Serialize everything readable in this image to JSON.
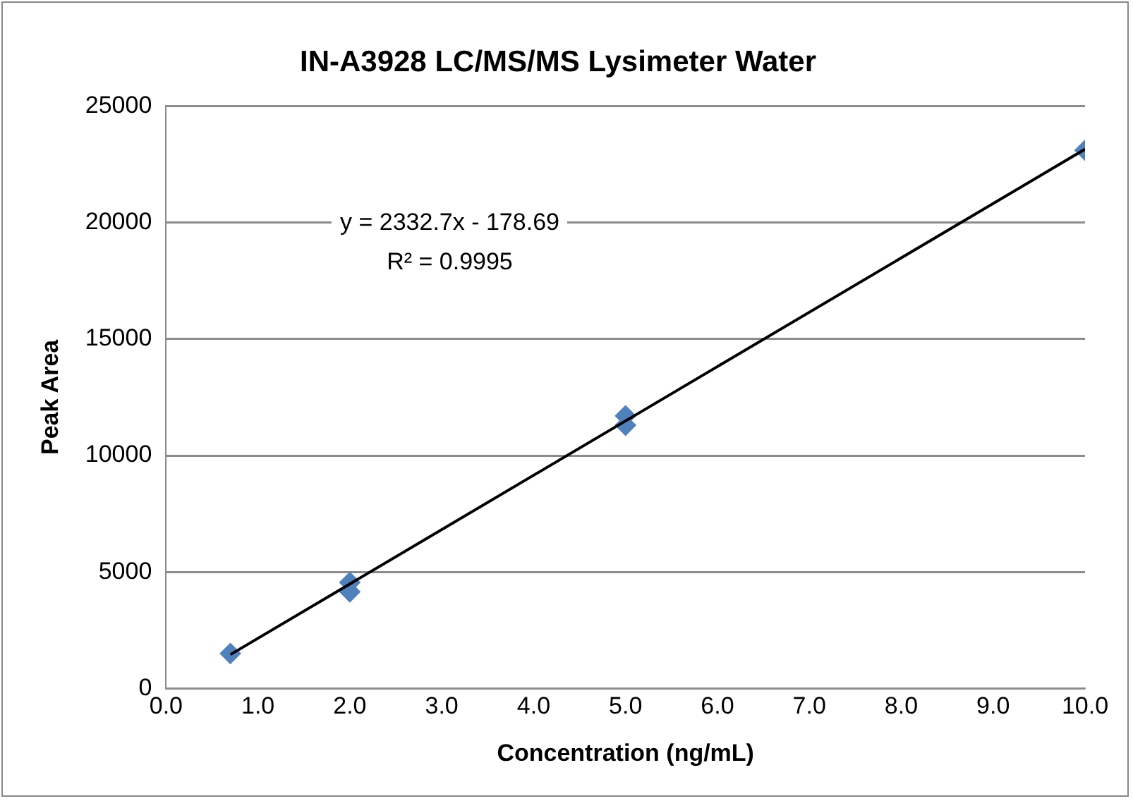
{
  "chart_data": {
    "type": "scatter",
    "title": "IN-A3928 LC/MS/MS Lysimeter Water",
    "xlabel": "Concentration (ng/mL)",
    "ylabel": "Peak Area",
    "x": [
      0.7,
      2,
      2,
      5,
      5,
      10
    ],
    "marker": "diamond",
    "series": [
      {
        "color": "#4f81bd",
        "values": [
          1500,
          4550,
          4150,
          11700,
          11300,
          23100
        ]
      },
      {
        "type": "line",
        "color": "#000000",
        "x": [
          0.7,
          10
        ],
        "values": [
          1454,
          23148
        ],
        "marker": "none"
      }
    ],
    "xlim": [
      0,
      10
    ],
    "xticks": [
      {
        "value": 0,
        "label": "0.0"
      },
      {
        "value": 1,
        "label": "1.0"
      },
      {
        "value": 2,
        "label": "2.0"
      },
      {
        "value": 3,
        "label": "3.0"
      },
      {
        "value": 4,
        "label": "4.0"
      },
      {
        "value": 5,
        "label": "5.0"
      },
      {
        "value": 6,
        "label": "6.0"
      },
      {
        "value": 7,
        "label": "7.0"
      },
      {
        "value": 8,
        "label": "8.0"
      },
      {
        "value": 9,
        "label": "9.0"
      },
      {
        "value": 10,
        "label": "10.0"
      }
    ],
    "ylim": [
      0,
      25000
    ],
    "yticks": [
      0,
      5000,
      10000,
      15000,
      20000,
      25000
    ],
    "grid": "y",
    "legend": false,
    "annotations": [
      "y = 2332.7x - 178.69",
      "R² = 0.9995"
    ]
  }
}
